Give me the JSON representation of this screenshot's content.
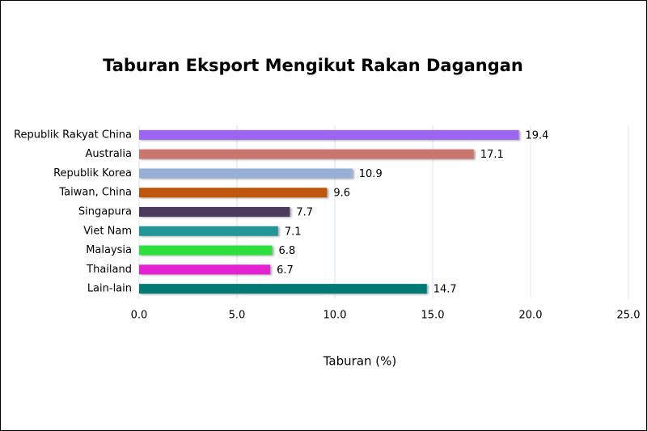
{
  "chart_data": {
    "type": "bar",
    "orientation": "horizontal",
    "title": "Taburan Eksport Mengikut Rakan Dagangan",
    "x_label": "Taburan (%)",
    "categories": [
      "Republik Rakyat China",
      "Australia",
      "Republik Korea",
      "Taiwan, China",
      "Singapura",
      "Viet Nam",
      "Malaysia",
      "Thailand",
      "Lain-lain"
    ],
    "values": [
      19.4,
      17.1,
      10.9,
      9.6,
      7.7,
      7.1,
      6.8,
      6.7,
      14.7
    ],
    "colors": [
      "#9a66f2",
      "#c97670",
      "#98b0d8",
      "#bf560b",
      "#4b3a5e",
      "#249696",
      "#2ee03e",
      "#e424d4",
      "#017a74"
    ],
    "xlim": [
      0,
      25
    ],
    "xticks": [
      {
        "value": 0,
        "label": "0.0"
      },
      {
        "value": 5,
        "label": "5.0"
      },
      {
        "value": 10,
        "label": "10.0"
      },
      {
        "value": 15,
        "label": "15.0"
      },
      {
        "value": 20,
        "label": "20.0"
      },
      {
        "value": 25,
        "label": "25.0"
      }
    ],
    "grid": true
  }
}
